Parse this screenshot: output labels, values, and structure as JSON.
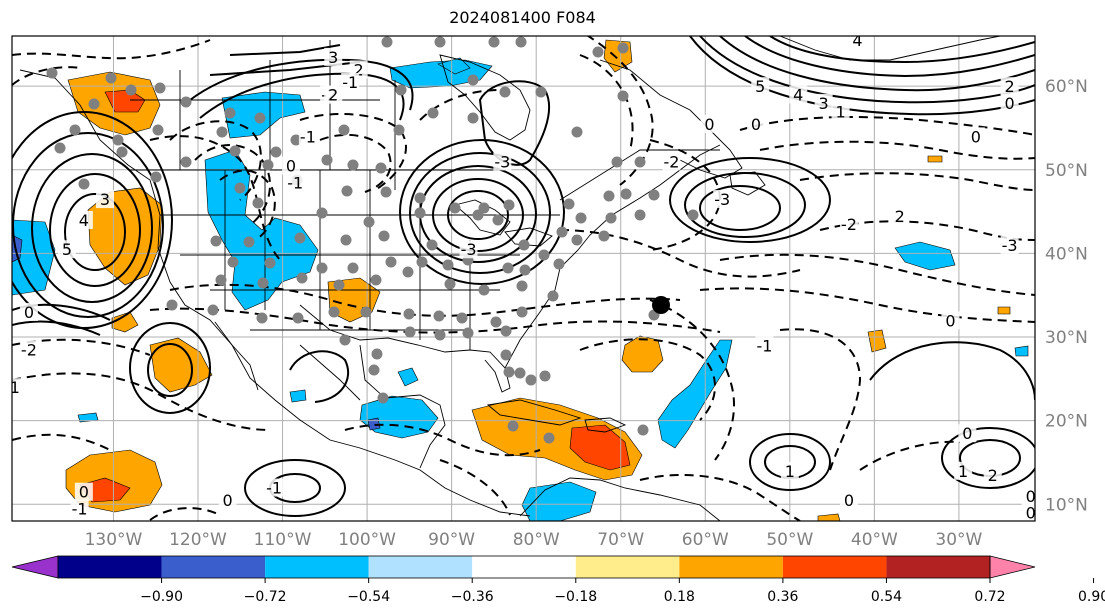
{
  "title": "2024081400 F084",
  "map": {
    "projection": "PlateCarree",
    "lon_range": [
      -142,
      -21
    ],
    "lat_range": [
      8,
      66
    ],
    "gridlines": true,
    "lon_ticks": [
      {
        "value": -130,
        "label": "130°W"
      },
      {
        "value": -120,
        "label": "120°W"
      },
      {
        "value": -110,
        "label": "110°W"
      },
      {
        "value": -100,
        "label": "100°W"
      },
      {
        "value": -90,
        "label": "90°W"
      },
      {
        "value": -80,
        "label": "80°W"
      },
      {
        "value": -70,
        "label": "70°W"
      },
      {
        "value": -60,
        "label": "60°W"
      },
      {
        "value": -50,
        "label": "50°W"
      },
      {
        "value": -40,
        "label": "40°W"
      },
      {
        "value": -30,
        "label": "30°W"
      }
    ],
    "lat_ticks": [
      {
        "value": 60,
        "label": "60°N"
      },
      {
        "value": 50,
        "label": "50°N"
      },
      {
        "value": 40,
        "label": "40°N"
      },
      {
        "value": 30,
        "label": "30°N"
      },
      {
        "value": 20,
        "label": "20°N"
      },
      {
        "value": 10,
        "label": "10°N"
      }
    ]
  },
  "colorbar": {
    "levels": [
      "−0.90",
      "−0.72",
      "−0.54",
      "−0.36",
      "−0.18",
      "0.18",
      "0.36",
      "0.54",
      "0.72",
      "0.90"
    ],
    "colors": [
      "#9932cc",
      "#00008b",
      "#3a5fcd",
      "#00bfff",
      "#b0e2ff",
      "#ffffff",
      "#ffec8b",
      "#ffa500",
      "#ff4500",
      "#b22222",
      "#ff82ab"
    ]
  },
  "contour_labels": [
    {
      "text": "-3",
      "lon": -88,
      "lat": 40.5
    },
    {
      "text": "0",
      "lon": -109,
      "lat": 50.5
    },
    {
      "text": "-1",
      "lon": -108.5,
      "lat": 48.5
    },
    {
      "text": "5",
      "lon": -135.5,
      "lat": 40.5
    },
    {
      "text": "4",
      "lon": -133.5,
      "lat": 44
    },
    {
      "text": "3",
      "lon": -131,
      "lat": 46.5
    },
    {
      "text": "3",
      "lon": -104,
      "lat": 63.5
    },
    {
      "text": "2",
      "lon": -101,
      "lat": 62
    },
    {
      "text": "-1",
      "lon": -102,
      "lat": 60.5
    },
    {
      "text": "-2",
      "lon": -104.5,
      "lat": 59
    },
    {
      "text": "2",
      "lon": -104,
      "lat": 59
    },
    {
      "text": "-1",
      "lon": -107,
      "lat": 54
    },
    {
      "text": "0",
      "lon": -140,
      "lat": 33
    },
    {
      "text": "-2",
      "lon": -140,
      "lat": 28.5
    },
    {
      "text": "-1",
      "lon": -142,
      "lat": 24
    },
    {
      "text": "0",
      "lon": -133.5,
      "lat": 11.5
    },
    {
      "text": "-1",
      "lon": -134,
      "lat": 9.5
    },
    {
      "text": "-1",
      "lon": -111,
      "lat": 12
    },
    {
      "text": "0",
      "lon": -116.5,
      "lat": 10.5
    },
    {
      "text": "-3",
      "lon": -84,
      "lat": 51
    },
    {
      "text": "0",
      "lon": -59.5,
      "lat": 55.5
    },
    {
      "text": "-2",
      "lon": -64,
      "lat": 51
    },
    {
      "text": "-3",
      "lon": -58,
      "lat": 46.5
    },
    {
      "text": "-2",
      "lon": -43,
      "lat": 43.5
    },
    {
      "text": "2",
      "lon": -37,
      "lat": 44.5
    },
    {
      "text": "-3",
      "lon": -24,
      "lat": 41
    },
    {
      "text": "0",
      "lon": -31,
      "lat": 32
    },
    {
      "text": "0",
      "lon": -28,
      "lat": 54
    },
    {
      "text": "5",
      "lon": -53.5,
      "lat": 60
    },
    {
      "text": "4",
      "lon": -49,
      "lat": 59
    },
    {
      "text": "3",
      "lon": -46,
      "lat": 58
    },
    {
      "text": "1",
      "lon": -44,
      "lat": 57
    },
    {
      "text": "0",
      "lon": -54,
      "lat": 55.5
    },
    {
      "text": "2",
      "lon": -24,
      "lat": 60
    },
    {
      "text": "4",
      "lon": -42,
      "lat": 65.5
    },
    {
      "text": "0",
      "lon": -24,
      "lat": 58
    },
    {
      "text": "-1",
      "lon": -53,
      "lat": 29
    },
    {
      "text": "1",
      "lon": -50,
      "lat": 14
    },
    {
      "text": "0",
      "lon": -43,
      "lat": 10.5
    },
    {
      "text": "1",
      "lon": -29.5,
      "lat": 14
    },
    {
      "text": "2",
      "lon": -26,
      "lat": 13.5
    },
    {
      "text": "0",
      "lon": -29,
      "lat": 18.5
    },
    {
      "text": "0",
      "lon": -21.5,
      "lat": 11
    },
    {
      "text": "0",
      "lon": -21.5,
      "lat": 9
    }
  ]
}
